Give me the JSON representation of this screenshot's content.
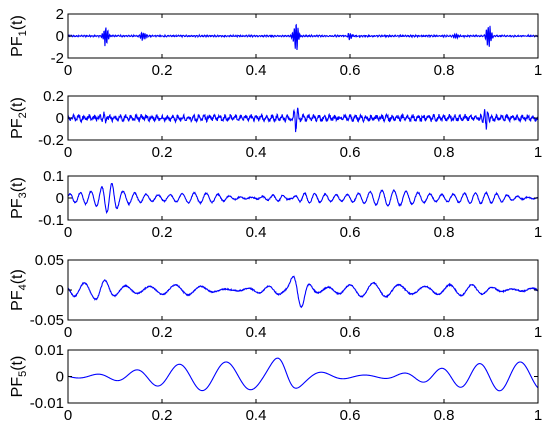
{
  "chart_data": [
    {
      "type": "line",
      "ylabel_main": "PF",
      "ylabel_sub": "1",
      "ylabel_tail": "(t)",
      "xlim": [
        0,
        1
      ],
      "ylim": [
        -2,
        2
      ],
      "xticks": [
        "0",
        "0.2",
        "0.4",
        "0.6",
        "0.8",
        "1"
      ],
      "yticks": [
        "2",
        "0",
        "-2"
      ],
      "ytick_values": [
        2,
        0,
        -2
      ],
      "color": "#0000ff",
      "waveform": {
        "kind": "bursts",
        "base_amplitude": 0.15,
        "base_freq": 180,
        "bursts": [
          {
            "t": 0.08,
            "amplitude": 1.1
          },
          {
            "t": 0.16,
            "amplitude": 0.5
          },
          {
            "t": 0.485,
            "amplitude": 1.6
          },
          {
            "t": 0.6,
            "amplitude": 0.35
          },
          {
            "t": 0.825,
            "amplitude": 0.3
          },
          {
            "t": 0.895,
            "amplitude": 1.3
          }
        ]
      }
    },
    {
      "type": "line",
      "ylabel_main": "PF",
      "ylabel_sub": "2",
      "ylabel_tail": "(t)",
      "xlim": [
        0,
        1
      ],
      "ylim": [
        -0.2,
        0.2
      ],
      "xticks": [
        "0",
        "0.2",
        "0.4",
        "0.6",
        "0.8",
        "1"
      ],
      "yticks": [
        "0.2",
        "0",
        "-0.2"
      ],
      "ytick_values": [
        0.2,
        0,
        -0.2
      ],
      "color": "#0000ff",
      "waveform": {
        "kind": "bursts",
        "base_amplitude": 0.06,
        "base_freq": 90,
        "bursts": [
          {
            "t": 0.485,
            "amplitude": 0.12
          },
          {
            "t": 0.89,
            "amplitude": 0.13
          },
          {
            "t": 0.08,
            "amplitude": 0.05
          }
        ]
      }
    },
    {
      "type": "line",
      "ylabel_main": "PF",
      "ylabel_sub": "3",
      "ylabel_tail": "(t)",
      "xlim": [
        0,
        1
      ],
      "ylim": [
        -0.1,
        0.1
      ],
      "xticks": [
        "0",
        "0.2",
        "0.4",
        "0.6",
        "0.8",
        "1"
      ],
      "yticks": [
        "0.1",
        "0",
        "-0.1"
      ],
      "ytick_values": [
        0.1,
        0,
        -0.1
      ],
      "color": "#0000ff",
      "waveform": {
        "kind": "oscillation",
        "base_amplitude": 0.035,
        "base_freq": 42,
        "bursts": [
          {
            "t": 0.09,
            "amplitude": 0.035
          },
          {
            "t": 0.48,
            "amplitude": 0.02
          }
        ]
      }
    },
    {
      "type": "line",
      "ylabel_main": "PF",
      "ylabel_sub": "4",
      "ylabel_tail": "(t)",
      "xlim": [
        0,
        1
      ],
      "ylim": [
        -0.05,
        0.05
      ],
      "xticks": [
        "0",
        "0.2",
        "0.4",
        "0.6",
        "0.8",
        "1"
      ],
      "yticks": [
        "0.05",
        "0",
        "-0.05"
      ],
      "ytick_values": [
        0.05,
        0,
        -0.05
      ],
      "color": "#0000ff",
      "waveform": {
        "kind": "oscillation",
        "base_amplitude": 0.012,
        "base_freq": 21,
        "bursts": [
          {
            "t": 0.49,
            "amplitude": 0.03
          },
          {
            "t": 0.07,
            "amplitude": 0.008
          }
        ]
      }
    },
    {
      "type": "line",
      "ylabel_main": "PF",
      "ylabel_sub": "5",
      "ylabel_tail": "(t)",
      "xlim": [
        0,
        1
      ],
      "ylim": [
        -0.01,
        0.01
      ],
      "xticks": [
        "0",
        "0.2",
        "0.4",
        "0.6",
        "0.8",
        "1"
      ],
      "yticks": [
        "0.01",
        "0",
        "-0.01"
      ],
      "ytick_values": [
        0.01,
        0,
        -0.01
      ],
      "color": "#0000ff",
      "waveform": {
        "kind": "slow",
        "base_amplitude": 0.0055,
        "base_freq": 11,
        "bursts": [
          {
            "t": 0.46,
            "amplitude": 0.004
          }
        ]
      }
    }
  ]
}
